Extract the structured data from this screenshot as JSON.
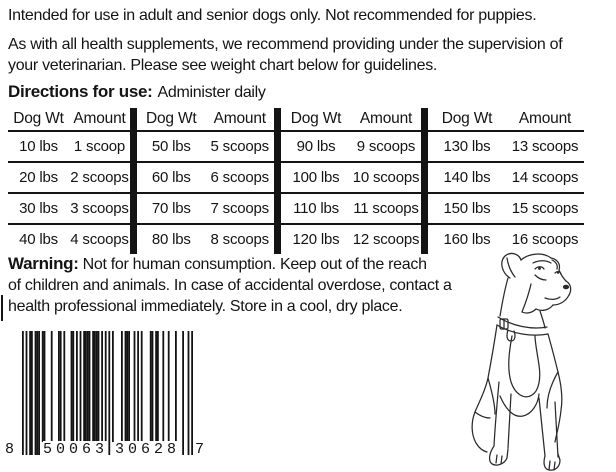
{
  "colors": {
    "ink": "#141414",
    "background": "#ffffff"
  },
  "intro": {
    "usage_line": "Intended for use in adult and senior dogs only. Not recommended for puppies.",
    "supervision_line1": "As with all health supplements, we recommend providing under the supervision of",
    "supervision_line2": "your veterinarian. Please see weight chart below for guidelines.",
    "directions_label": "Directions for use:",
    "directions_text": "Administer daily"
  },
  "dosage_table": {
    "col_headers": [
      "Dog Wt",
      "Amount"
    ],
    "groups": [
      {
        "rows": [
          [
            "10 lbs",
            "1 scoop"
          ],
          [
            "20 lbs",
            "2 scoops"
          ],
          [
            "30 lbs",
            "3 scoops"
          ],
          [
            "40 lbs",
            "4 scoops"
          ]
        ]
      },
      {
        "rows": [
          [
            "50 lbs",
            "5 scoops"
          ],
          [
            "60 lbs",
            "6 scoops"
          ],
          [
            "70 lbs",
            "7 scoops"
          ],
          [
            "80 lbs",
            "8 scoops"
          ]
        ]
      },
      {
        "rows": [
          [
            "90 lbs",
            "9 scoops"
          ],
          [
            "100 lbs",
            "10 scoops"
          ],
          [
            "110 lbs",
            "11 scoops"
          ],
          [
            "120 lbs",
            "12 scoops"
          ]
        ]
      },
      {
        "rows": [
          [
            "130 lbs",
            "13 scoops"
          ],
          [
            "140 lbs",
            "14 scoops"
          ],
          [
            "150 lbs",
            "15 scoops"
          ],
          [
            "160 lbs",
            "16 scoops"
          ]
        ]
      }
    ]
  },
  "warning": {
    "label": "Warning:",
    "line1": "Not for human consumption. Keep out of the reach",
    "line2": "of children and animals. In case of accidental overdose, contact a",
    "line3": "health professional immediately. Store in a cool, dry place."
  },
  "barcode": {
    "symbology": "UPC-A",
    "digits": "850063306287",
    "display": {
      "number_system": "8",
      "left_group": "50063",
      "right_group": "30628",
      "check_digit": "7"
    }
  },
  "illustration": {
    "subject": "boxer dog sitting, line drawing"
  }
}
